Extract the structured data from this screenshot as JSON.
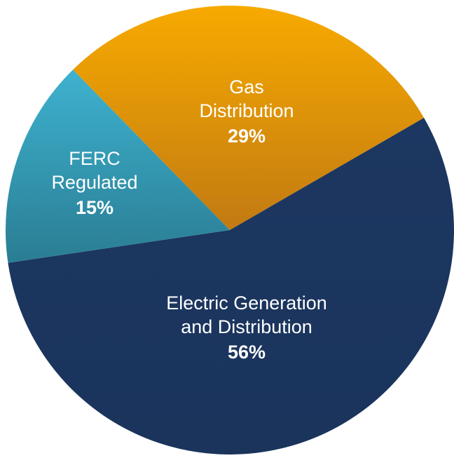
{
  "chart_data": {
    "type": "pie",
    "categories": [
      [
        "Gas",
        "Distribution"
      ],
      [
        "Electric Generation",
        "and Distribution"
      ],
      [
        "FERC",
        "Regulated"
      ]
    ],
    "values": [
      29,
      56,
      15
    ],
    "value_labels": [
      "29%",
      "56%",
      "15%"
    ],
    "colors": [
      "#f2a300",
      "#1c3761",
      "#38a6c2"
    ]
  }
}
